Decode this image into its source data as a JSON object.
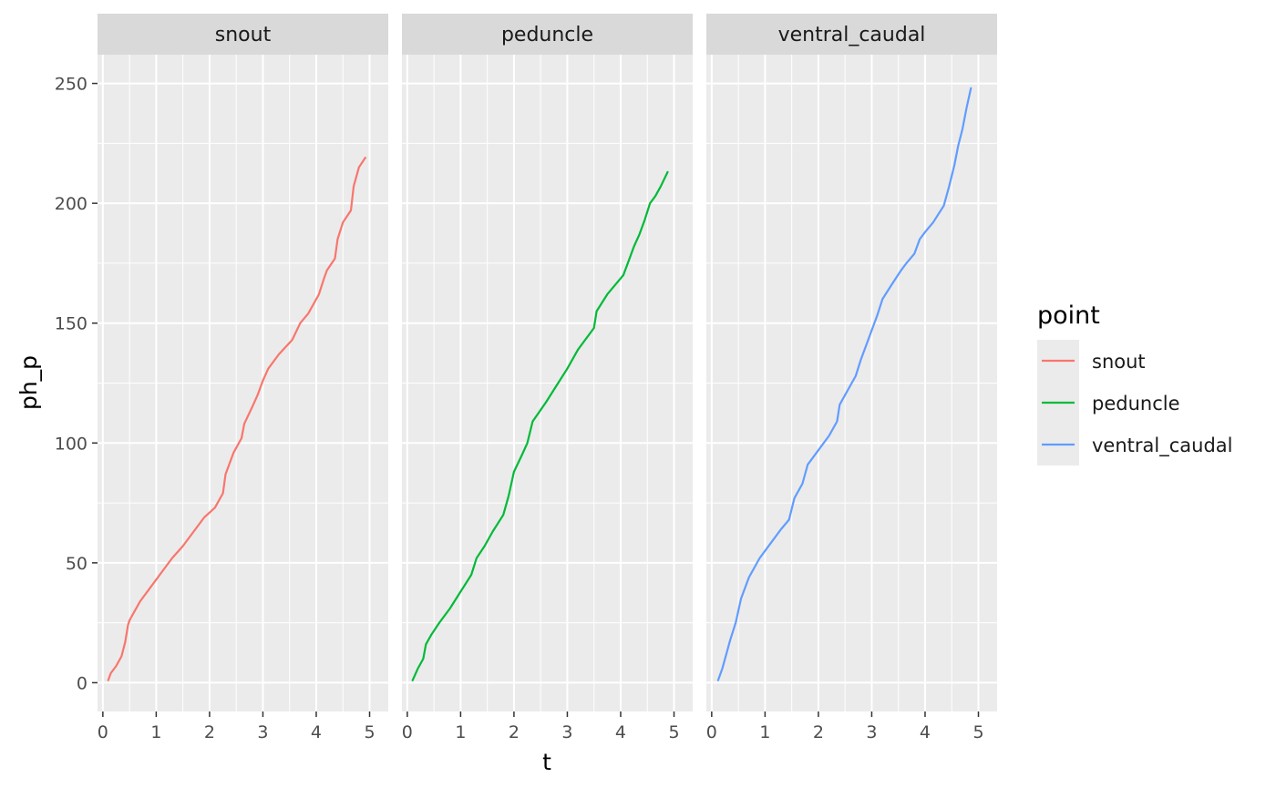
{
  "chart_data": {
    "type": "line",
    "facet_by": "point",
    "facets": [
      "snout",
      "peduncle",
      "ventral_caudal"
    ],
    "xlabel": "t",
    "ylabel": "ph_p",
    "xlim": [
      -0.1,
      5.35
    ],
    "ylim": [
      -12,
      262
    ],
    "x_ticks": [
      0,
      1,
      2,
      3,
      4,
      5
    ],
    "y_ticks": [
      0,
      50,
      100,
      150,
      200,
      250
    ],
    "grid": true,
    "legend": {
      "title": "point",
      "position": "right",
      "entries": [
        "snout",
        "peduncle",
        "ventral_caudal"
      ]
    },
    "series": [
      {
        "name": "snout",
        "color": "#F8766D",
        "x": [
          0.1,
          0.15,
          0.25,
          0.35,
          0.42,
          0.47,
          0.5,
          0.55,
          0.7,
          0.9,
          1.1,
          1.3,
          1.5,
          1.7,
          1.9,
          2.1,
          2.25,
          2.3,
          2.45,
          2.6,
          2.65,
          2.8,
          2.9,
          3.0,
          3.1,
          3.3,
          3.55,
          3.7,
          3.85,
          4.05,
          4.15,
          4.2,
          4.35,
          4.4,
          4.5,
          4.65,
          4.7,
          4.8,
          4.92
        ],
        "y": [
          1,
          4,
          7,
          11,
          17,
          24,
          26,
          28,
          34,
          40,
          46,
          52,
          57,
          63,
          69,
          73,
          79,
          87,
          96,
          102,
          108,
          115,
          120,
          126,
          131,
          137,
          143,
          150,
          154,
          162,
          169,
          172,
          177,
          185,
          192,
          197,
          207,
          215,
          219
        ]
      },
      {
        "name": "peduncle",
        "color": "#00BA38",
        "x": [
          0.1,
          0.2,
          0.3,
          0.35,
          0.45,
          0.6,
          0.8,
          1.0,
          1.2,
          1.3,
          1.45,
          1.6,
          1.8,
          1.9,
          2.0,
          2.15,
          2.25,
          2.35,
          2.6,
          2.8,
          3.0,
          3.2,
          3.4,
          3.5,
          3.55,
          3.75,
          3.9,
          4.05,
          4.15,
          4.25,
          4.35,
          4.45,
          4.55,
          4.65,
          4.75,
          4.88
        ],
        "y": [
          1,
          6,
          10,
          16,
          20,
          25,
          31,
          38,
          45,
          52,
          57,
          63,
          70,
          78,
          88,
          95,
          100,
          109,
          117,
          124,
          131,
          139,
          145,
          148,
          155,
          162,
          166,
          170,
          176,
          182,
          187,
          193,
          200,
          203,
          207,
          213
        ]
      },
      {
        "name": "ventral_caudal",
        "color": "#619CFF",
        "x": [
          0.12,
          0.2,
          0.25,
          0.35,
          0.45,
          0.55,
          0.7,
          0.9,
          1.1,
          1.3,
          1.45,
          1.55,
          1.7,
          1.8,
          2.0,
          2.2,
          2.35,
          2.4,
          2.55,
          2.7,
          2.8,
          2.9,
          3.0,
          3.1,
          3.2,
          3.4,
          3.55,
          3.65,
          3.8,
          3.9,
          4.0,
          4.15,
          4.35,
          4.45,
          4.55,
          4.62,
          4.7,
          4.78,
          4.86
        ],
        "y": [
          1,
          6,
          10,
          18,
          25,
          35,
          44,
          52,
          58,
          64,
          68,
          77,
          83,
          91,
          97,
          103,
          109,
          116,
          122,
          128,
          135,
          141,
          147,
          153,
          160,
          167,
          172,
          175,
          179,
          185,
          188,
          192,
          199,
          207,
          216,
          224,
          231,
          240,
          248
        ]
      }
    ]
  }
}
